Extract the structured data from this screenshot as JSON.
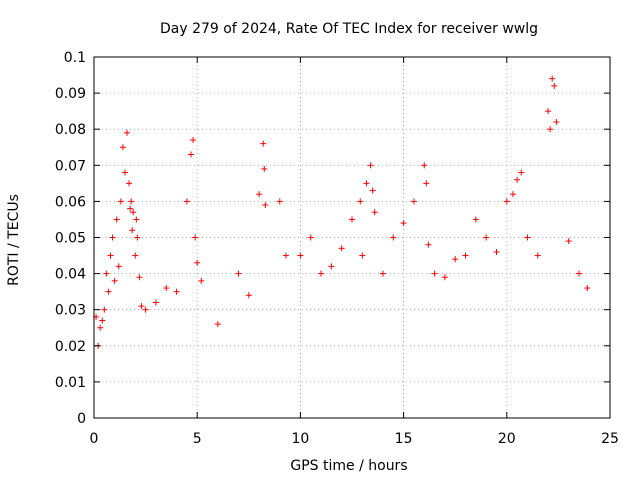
{
  "chart_data": {
    "type": "scatter",
    "title": "Day 279 of 2024, Rate Of TEC Index for receiver wwlg",
    "xlabel": "GPS time / hours",
    "ylabel": "ROTI / TECUs",
    "xlim": [
      0,
      25
    ],
    "ylim": [
      0,
      0.1
    ],
    "xticks": [
      "0",
      "5",
      "10",
      "15",
      "20",
      "25"
    ],
    "yticks": [
      "0",
      "0.01",
      "0.02",
      "0.03",
      "0.04",
      "0.05",
      "0.06",
      "0.07",
      "0.08",
      "0.09",
      "0.1"
    ],
    "grid": true,
    "marker": "plus",
    "color": "#ff0000",
    "series": [
      {
        "x": [
          0.1,
          0.2,
          0.3,
          0.4,
          0.5,
          0.6,
          0.7,
          0.8,
          0.9,
          1.0,
          1.1,
          1.2,
          1.3,
          1.4,
          1.5,
          1.6,
          1.7,
          1.75,
          1.8,
          1.85,
          1.9,
          2.0,
          2.05,
          2.1,
          2.2,
          2.3,
          2.5,
          3.0,
          3.5,
          4.0,
          4.5,
          4.7,
          4.8,
          4.9,
          5.0,
          5.2,
          6.0,
          7.0,
          7.5,
          8.0,
          8.2,
          8.25,
          8.3,
          9.0,
          9.3,
          10.0,
          10.5,
          11.0,
          11.5,
          12.0,
          12.5,
          12.9,
          13.0,
          13.2,
          13.4,
          13.5,
          13.6,
          14.0,
          14.5,
          15.0,
          15.5,
          16.0,
          16.1,
          16.2,
          16.5,
          17.0,
          17.5,
          18.0,
          18.5,
          19.0,
          19.5,
          20.0,
          20.3,
          20.5,
          20.7,
          21.0,
          21.5,
          22.0,
          22.1,
          22.2,
          22.3,
          22.4,
          23.0,
          23.5,
          23.9
        ],
        "y": [
          0.028,
          0.02,
          0.025,
          0.027,
          0.03,
          0.04,
          0.035,
          0.045,
          0.05,
          0.038,
          0.055,
          0.042,
          0.06,
          0.075,
          0.068,
          0.079,
          0.065,
          0.058,
          0.06,
          0.052,
          0.057,
          0.045,
          0.055,
          0.05,
          0.039,
          0.031,
          0.03,
          0.032,
          0.036,
          0.035,
          0.06,
          0.073,
          0.077,
          0.05,
          0.043,
          0.038,
          0.026,
          0.04,
          0.034,
          0.062,
          0.076,
          0.069,
          0.059,
          0.06,
          0.045,
          0.045,
          0.05,
          0.04,
          0.042,
          0.047,
          0.055,
          0.06,
          0.045,
          0.065,
          0.07,
          0.063,
          0.057,
          0.04,
          0.05,
          0.054,
          0.06,
          0.07,
          0.065,
          0.048,
          0.04,
          0.039,
          0.044,
          0.045,
          0.055,
          0.05,
          0.046,
          0.06,
          0.062,
          0.066,
          0.068,
          0.05,
          0.045,
          0.085,
          0.08,
          0.094,
          0.092,
          0.082,
          0.049,
          0.04,
          0.036
        ]
      }
    ]
  }
}
